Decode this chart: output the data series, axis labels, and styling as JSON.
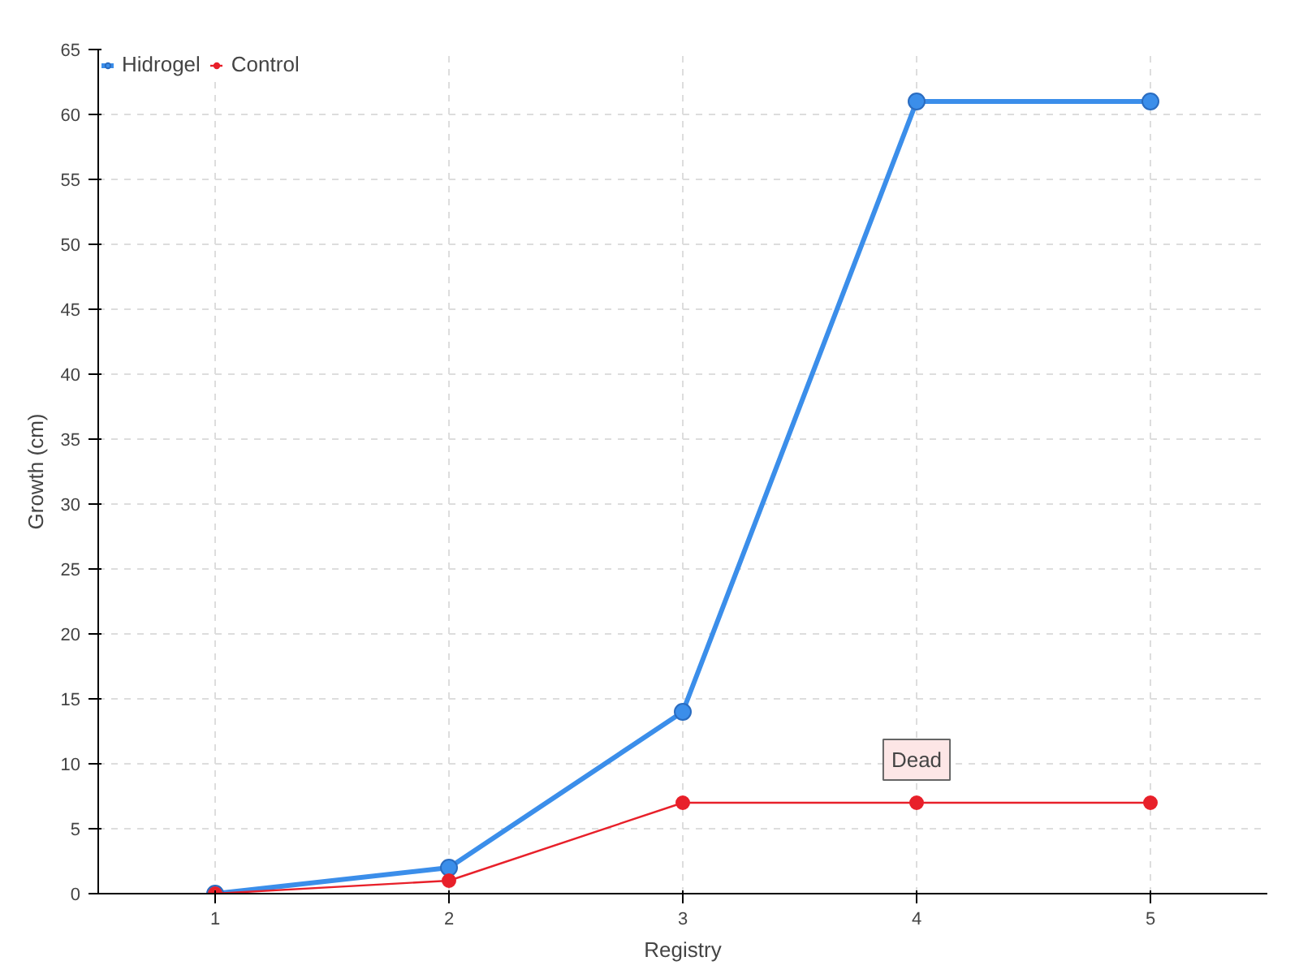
{
  "chart_data": {
    "type": "line",
    "xlabel": "Registry",
    "ylabel": "Growth (cm)",
    "x": [
      1,
      2,
      3,
      4,
      5
    ],
    "series": [
      {
        "name": "Hidrogel",
        "color": "#3b8eea",
        "values": [
          0,
          2,
          14,
          61,
          61
        ]
      },
      {
        "name": "Control",
        "color": "#e8202a",
        "values": [
          0,
          1,
          7,
          7,
          7
        ]
      }
    ],
    "xlim": [
      0.5,
      5.5
    ],
    "xticks": [
      1,
      2,
      3,
      4,
      5
    ],
    "ylim": [
      0,
      65
    ],
    "yticks": [
      0,
      5,
      10,
      15,
      20,
      25,
      30,
      35,
      40,
      45,
      50,
      55,
      60,
      65
    ],
    "grid": true,
    "legend": "top left",
    "marker": "circle",
    "line_style": "solid",
    "annotations": [
      {
        "text": "Dead",
        "x": 4,
        "y": 7
      }
    ]
  }
}
